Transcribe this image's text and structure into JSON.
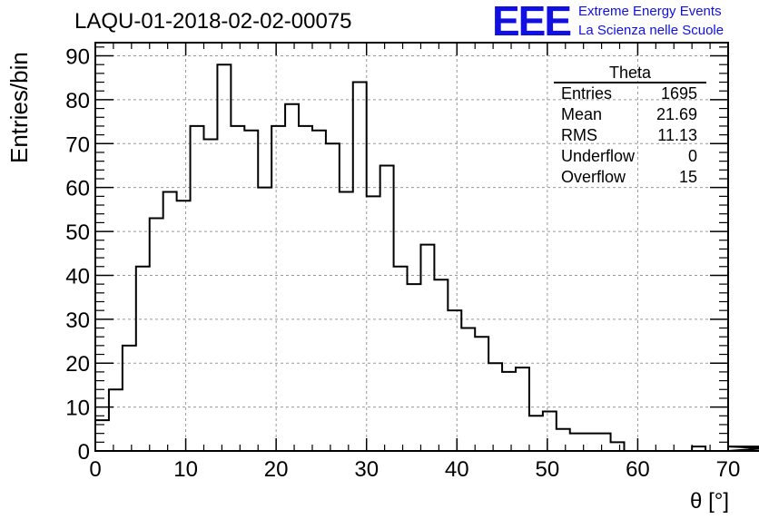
{
  "header": {
    "title": "LAQU-01-2018-02-02-00075",
    "logo": "EEE",
    "logo_line1": "Extreme Energy Events",
    "logo_line2": "La Scienza nelle Scuole"
  },
  "stats": {
    "name": "Theta",
    "rows": [
      {
        "label": "Entries",
        "value": "1695"
      },
      {
        "label": "Mean",
        "value": "21.69"
      },
      {
        "label": "RMS",
        "value": "11.13"
      },
      {
        "label": "Underflow",
        "value": "0"
      },
      {
        "label": "Overflow",
        "value": "15"
      }
    ]
  },
  "chart_data": {
    "type": "histogram",
    "title": "LAQU-01-2018-02-02-00075",
    "xlabel": "θ [°]",
    "ylabel": "Entries/bin",
    "xlim": [
      0,
      70
    ],
    "ylim": [
      0,
      93
    ],
    "grid": true,
    "bin_width": 1.5,
    "x_start": 0,
    "xticks": [
      0,
      10,
      20,
      30,
      40,
      50,
      60,
      70
    ],
    "yticks": [
      0,
      10,
      20,
      30,
      40,
      50,
      60,
      70,
      80,
      90
    ],
    "values": [
      7,
      14,
      24,
      42,
      53,
      59,
      57,
      74,
      71,
      88,
      74,
      73,
      60,
      74,
      79,
      74,
      73,
      70,
      59,
      84,
      58,
      65,
      42,
      38,
      47,
      39,
      32,
      28,
      26,
      20,
      18,
      19,
      8,
      9,
      5,
      4,
      4,
      4,
      2,
      0,
      0,
      0,
      0,
      0,
      1,
      0,
      0,
      0,
      0,
      0,
      0,
      1,
      1,
      1,
      0
    ]
  }
}
